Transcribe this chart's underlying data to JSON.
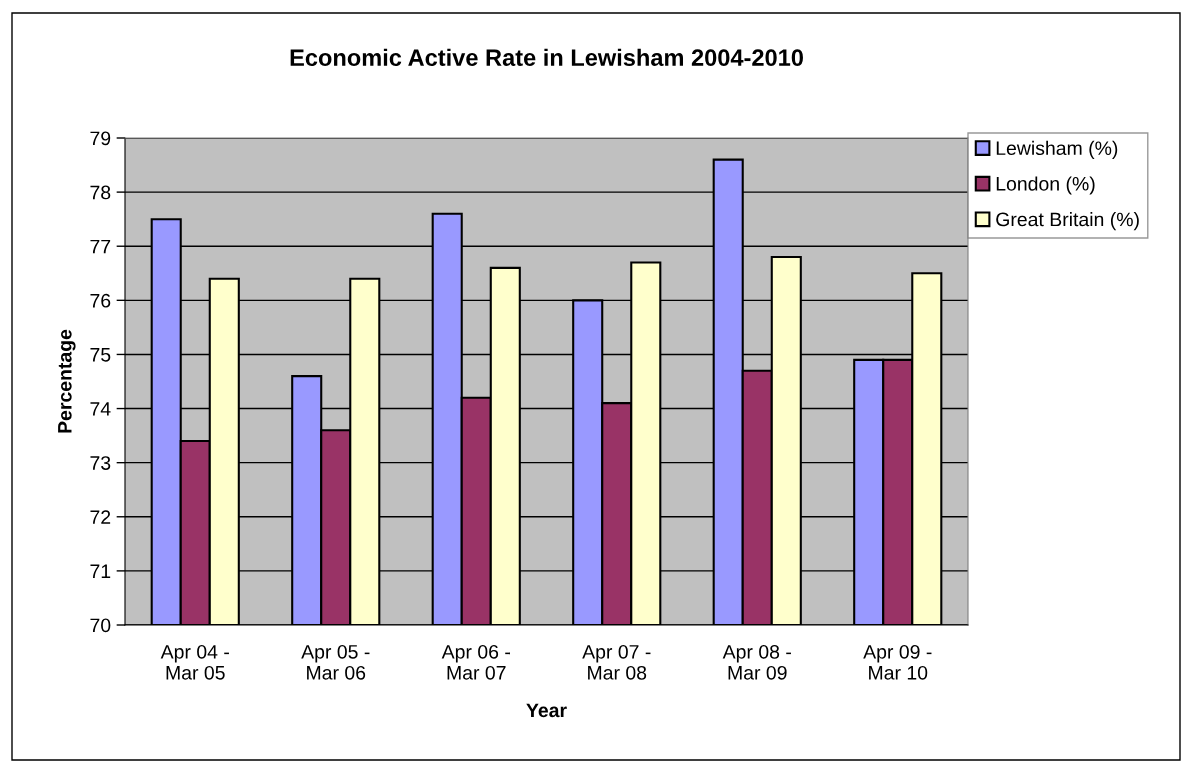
{
  "chart_data": {
    "type": "bar",
    "title": "Economic Active Rate in Lewisham 2004-2010",
    "xlabel": "Year",
    "ylabel": "Percentage",
    "categories": [
      "Apr 04 -\nMar 05",
      "Apr 05 -\nMar 06",
      "Apr 06 -\nMar 07",
      "Apr 07 -\nMar 08",
      "Apr 08 -\nMar 09",
      "Apr 09 -\nMar 10"
    ],
    "series": [
      {
        "name": "Lewisham (%)",
        "color": "#9999ff",
        "values": [
          77.5,
          74.6,
          77.6,
          76.0,
          78.6,
          74.9
        ]
      },
      {
        "name": "London (%)",
        "color": "#993366",
        "values": [
          73.4,
          73.6,
          74.2,
          74.1,
          74.7,
          74.9
        ]
      },
      {
        "name": "Great Britain (%)",
        "color": "#ffffcc",
        "values": [
          76.4,
          76.4,
          76.6,
          76.7,
          76.8,
          76.5
        ]
      }
    ],
    "ylim": [
      70,
      79
    ],
    "yticks": [
      70,
      71,
      72,
      73,
      74,
      75,
      76,
      77,
      78,
      79
    ],
    "grid": "y",
    "legend": "top right"
  }
}
